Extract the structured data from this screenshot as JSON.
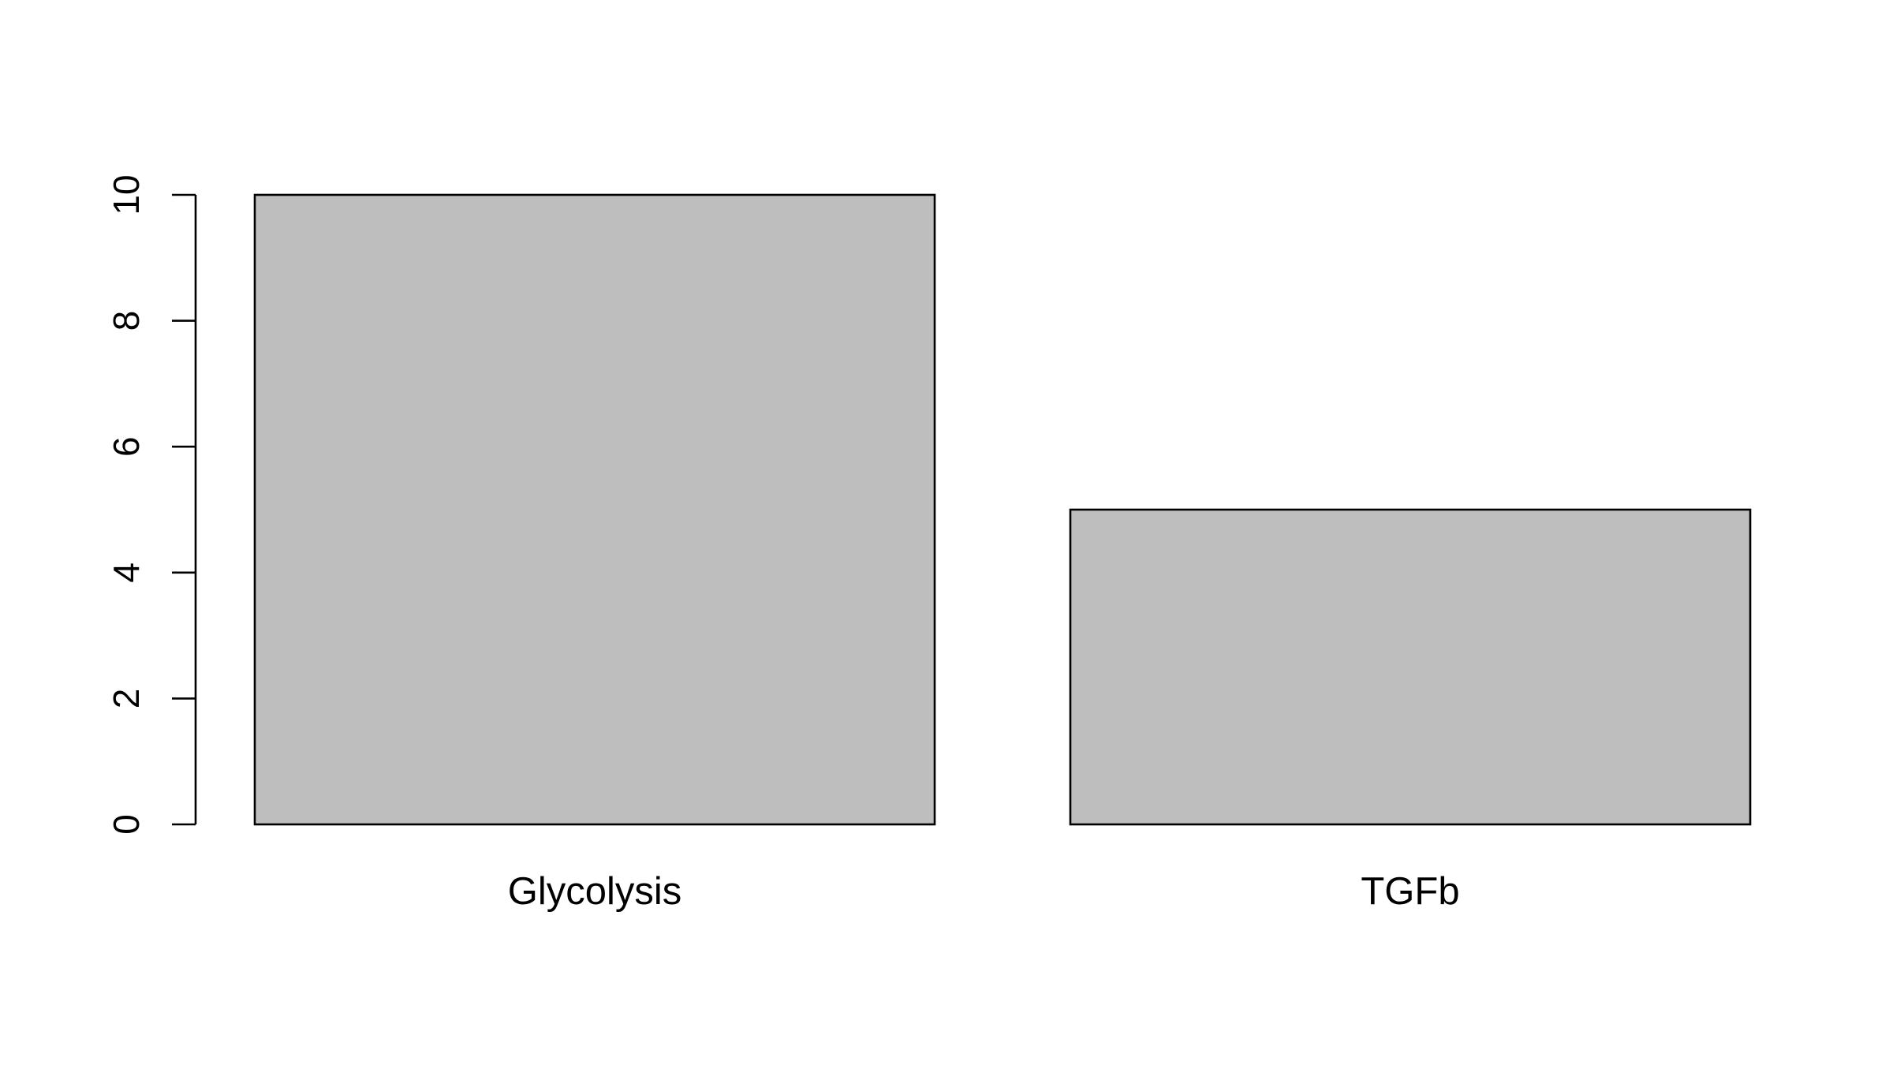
{
  "chart_data": {
    "type": "bar",
    "categories": [
      "Glycolysis",
      "TGFb"
    ],
    "values": [
      10,
      5
    ],
    "ylim": [
      0,
      10
    ],
    "yticks": [
      0,
      2,
      4,
      6,
      8,
      10
    ],
    "xlabel": "",
    "ylabel": "",
    "title": "",
    "grid": false,
    "colors": {
      "bar_fill": "#bebebe",
      "bar_stroke": "#000000",
      "axis": "#000000"
    }
  }
}
